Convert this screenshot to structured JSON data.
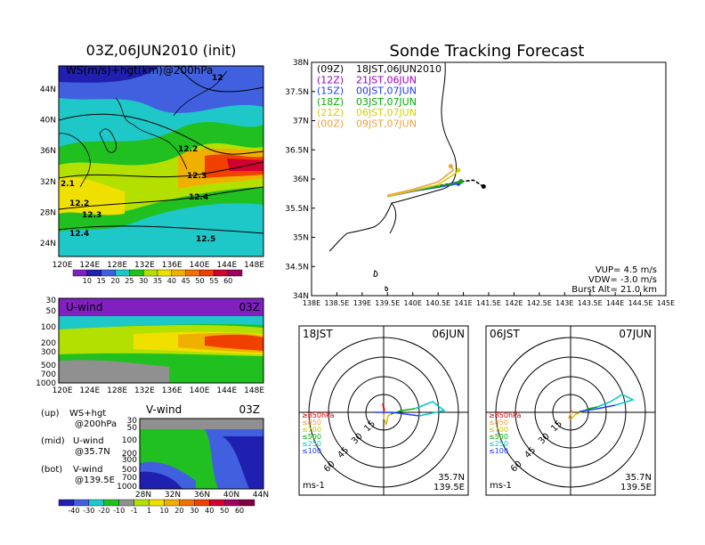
{
  "left": {
    "title": "03Z,06JUN2010 (init)",
    "map_label": "WS(m/s)+hgt(km)@200hPa",
    "lat_ticks": [
      "44N",
      "40N",
      "36N",
      "32N",
      "28N",
      "24N"
    ],
    "lon_ticks": [
      "120E",
      "124E",
      "128E",
      "132E",
      "136E",
      "140E",
      "144E",
      "148E"
    ],
    "contour_labels": [
      "12",
      "12.2",
      "12.3",
      "12.4",
      "12.5",
      "2.1",
      "12.2",
      "12.3",
      "12.4"
    ],
    "ws_colorbar": [
      "10",
      "15",
      "20",
      "25",
      "30",
      "35",
      "40",
      "45",
      "50",
      "55",
      "60"
    ],
    "u_panel": {
      "label": "U-wind",
      "time": "03Z",
      "p_ticks": [
        "30",
        "50",
        "100",
        "200",
        "300",
        "500",
        "700",
        "1000"
      ],
      "lon_ticks": [
        "120E",
        "124E",
        "128E",
        "132E",
        "136E",
        "140E",
        "144E",
        "148E"
      ]
    },
    "v_panel": {
      "label": "V-wind",
      "time": "03Z",
      "p_ticks": [
        "30",
        "50",
        "100",
        "200",
        "300",
        "500",
        "700",
        "1000"
      ],
      "lat_ticks": [
        "28N",
        "32N",
        "36N",
        "40N",
        "44N"
      ]
    },
    "notes": [
      {
        "k": "(up)",
        "v": "WS+hgt"
      },
      {
        "k": "",
        "v": "@200hPa"
      },
      {
        "k": "(mid)",
        "v": "U-wind"
      },
      {
        "k": "",
        "v": "@35.7N"
      },
      {
        "k": "(bot)",
        "v": "V-wind"
      },
      {
        "k": "",
        "v": "@139.5E"
      }
    ],
    "uv_colorbar": [
      "-40",
      "-30",
      "-20",
      "-10",
      "-1",
      "1",
      "10",
      "20",
      "30",
      "40",
      "50",
      "60"
    ]
  },
  "right": {
    "title": "Sonde Tracking Forecast",
    "lat_ticks": [
      "38N",
      "37.5N",
      "37N",
      "36.5N",
      "36N",
      "35.5N",
      "35N",
      "34.5N",
      "34N"
    ],
    "lon_ticks": [
      "138E",
      "138.5E",
      "139E",
      "139.5E",
      "140E",
      "140.5E",
      "141E",
      "141.5E",
      "142E",
      "142.5E",
      "143E",
      "143.5E",
      "144E",
      "144.5E",
      "145E"
    ],
    "legend": [
      {
        "code": "(09Z)",
        "time": "18JST,06JUN2010",
        "color": "#000000"
      },
      {
        "code": "(12Z)",
        "time": "21JST,06JUN",
        "color": "#a000c0"
      },
      {
        "code": "(15Z)",
        "time": "00JST,07JUN",
        "color": "#1e3cff"
      },
      {
        "code": "(18Z)",
        "time": "03JST,07JUN",
        "color": "#00b000"
      },
      {
        "code": "(21Z)",
        "time": "06JST,07JUN",
        "color": "#d2d200"
      },
      {
        "code": "(00Z)",
        "time": "09JST,07JUN",
        "color": "#f0a040"
      }
    ],
    "params": [
      "VUP= 4.5 m/s",
      "VDW= -3.0 m/s",
      "Burst Alt= 21.0 km"
    ]
  },
  "hodographs": [
    {
      "jst": "18JST",
      "date": "06JUN",
      "lat": "35.7N",
      "lon": "139.5E",
      "unit": "ms-1",
      "ring_labels": [
        "15",
        "30",
        "45",
        "60"
      ]
    },
    {
      "jst": "06JST",
      "date": "07JUN",
      "lat": "35.7N",
      "lon": "139.5E",
      "unit": "ms-1",
      "ring_labels": [
        "15",
        "30",
        "45",
        "60"
      ]
    }
  ],
  "hodo_legend": [
    {
      "t": "≥850hPa",
      "c": "#e00000"
    },
    {
      "t": "≤850",
      "c": "#f0a040"
    },
    {
      "t": "≤700",
      "c": "#c8c800"
    },
    {
      "t": "≤500",
      "c": "#00b000"
    },
    {
      "t": "≤250",
      "c": "#00c8c8"
    },
    {
      "t": "≤100",
      "c": "#1e3cff"
    }
  ],
  "chart_data": [
    {
      "type": "line",
      "title": "Sonde Tracking Forecast",
      "x_unit": "deg E",
      "y_unit": "deg N",
      "xlim": [
        138,
        145
      ],
      "ylim": [
        34,
        38
      ],
      "series": [
        {
          "name": "(09Z) 18JST,06JUN2010",
          "x": [
            139.5,
            140.0,
            140.5,
            140.9,
            141.2,
            141.4
          ],
          "y": [
            35.7,
            35.8,
            35.88,
            35.95,
            35.98,
            35.87
          ]
        },
        {
          "name": "(12Z) 21JST,06JUN",
          "x": [
            139.5,
            140.0,
            140.5,
            140.8,
            140.95
          ],
          "y": [
            35.7,
            35.79,
            35.87,
            35.93,
            35.96
          ]
        },
        {
          "name": "(15Z) 00JST,07JUN",
          "x": [
            139.5,
            140.0,
            140.5,
            140.9
          ],
          "y": [
            35.7,
            35.79,
            35.86,
            35.92
          ]
        },
        {
          "name": "(18Z) 03JST,07JUN",
          "x": [
            139.5,
            140.0,
            140.5,
            140.95
          ],
          "y": [
            35.7,
            35.8,
            35.87,
            35.95
          ]
        },
        {
          "name": "(21Z) 06JST,07JUN",
          "x": [
            139.5,
            140.0,
            140.5,
            140.85,
            140.9
          ],
          "y": [
            35.7,
            35.8,
            35.9,
            36.1,
            36.15
          ]
        },
        {
          "name": "(00Z) 09JST,07JUN",
          "x": [
            139.5,
            140.0,
            140.5,
            140.8,
            140.75
          ],
          "y": [
            35.72,
            35.82,
            35.95,
            36.15,
            36.22
          ]
        }
      ]
    }
  ]
}
